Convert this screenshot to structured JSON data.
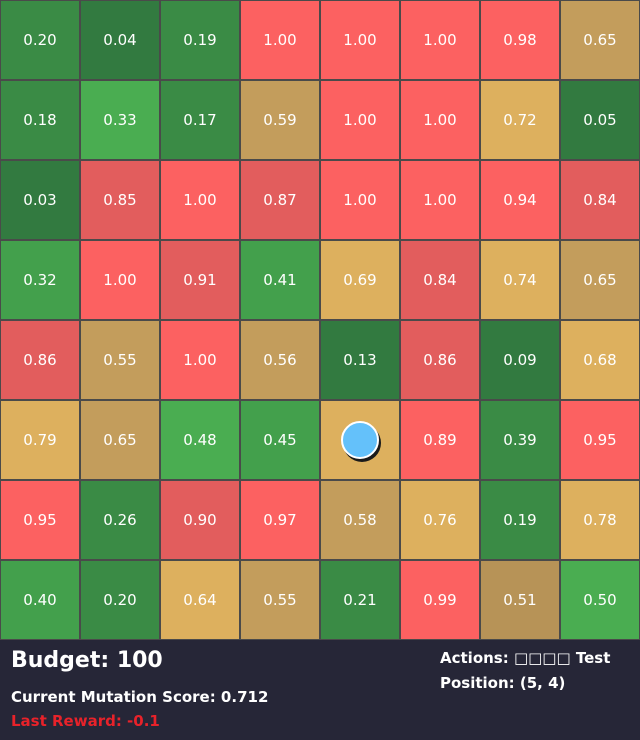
{
  "grid": {
    "rows": 8,
    "cols": 8,
    "values": [
      [
        "0.20",
        "0.04",
        "0.19",
        "1.00",
        "1.00",
        "1.00",
        "0.98",
        "0.65"
      ],
      [
        "0.18",
        "0.33",
        "0.17",
        "0.59",
        "1.00",
        "1.00",
        "0.72",
        "0.05"
      ],
      [
        "0.03",
        "0.85",
        "1.00",
        "0.87",
        "1.00",
        "1.00",
        "0.94",
        "0.84"
      ],
      [
        "0.32",
        "1.00",
        "0.91",
        "0.41",
        "0.69",
        "0.84",
        "0.74",
        "0.65"
      ],
      [
        "0.86",
        "0.55",
        "1.00",
        "0.56",
        "0.13",
        "0.86",
        "0.09",
        "0.68"
      ],
      [
        "0.79",
        "0.65",
        "0.48",
        "0.45",
        "",
        "0.89",
        "0.39",
        "0.95"
      ],
      [
        "0.95",
        "0.26",
        "0.90",
        "0.97",
        "0.58",
        "0.76",
        "0.19",
        "0.78"
      ],
      [
        "0.40",
        "0.20",
        "0.64",
        "0.55",
        "0.21",
        "0.99",
        "0.51",
        "0.50"
      ]
    ],
    "colors": [
      [
        "#3a8b45",
        "#327a40",
        "#3a8b45",
        "#fc6161",
        "#fc6161",
        "#fc6161",
        "#fc6161",
        "#c39d5c"
      ],
      [
        "#3a8b45",
        "#4aad51",
        "#3a8b45",
        "#c39d5c",
        "#fc6161",
        "#fc6161",
        "#ddb05e",
        "#327a40"
      ],
      [
        "#327a40",
        "#e25d5d",
        "#fc6161",
        "#e25d5d",
        "#fc6161",
        "#fc6161",
        "#fc6161",
        "#e25d5d"
      ],
      [
        "#43a04c",
        "#fc6161",
        "#e25d5d",
        "#43a04c",
        "#ddb05e",
        "#e25d5d",
        "#ddb05e",
        "#c39d5c"
      ],
      [
        "#e25d5d",
        "#c39d5c",
        "#fc6161",
        "#c39d5c",
        "#327a40",
        "#e25d5d",
        "#327a40",
        "#ddb05e"
      ],
      [
        "#ddb05e",
        "#c39d5c",
        "#4aad51",
        "#43a04c",
        "#ddb05e",
        "#fc6161",
        "#3a8b45",
        "#fc6161"
      ],
      [
        "#fc6161",
        "#3a8b45",
        "#e25d5d",
        "#fc6161",
        "#c39d5c",
        "#ddb05e",
        "#3a8b45",
        "#ddb05e"
      ],
      [
        "#43a04c",
        "#3a8b45",
        "#ddb05e",
        "#c39d5c",
        "#3a8b45",
        "#fc6161",
        "#b79357",
        "#4aad51"
      ]
    ]
  },
  "agent": {
    "row": 5,
    "col": 4,
    "color": "#64c1fa",
    "icon": "agent-circle-icon"
  },
  "hud": {
    "budget": "Budget: 100",
    "mutation_score": "Current Mutation Score: 0.712",
    "last_reward": "Last Reward: -0.1",
    "actions": "Actions: □□□□ Test",
    "position": "Position: (5, 4)"
  }
}
